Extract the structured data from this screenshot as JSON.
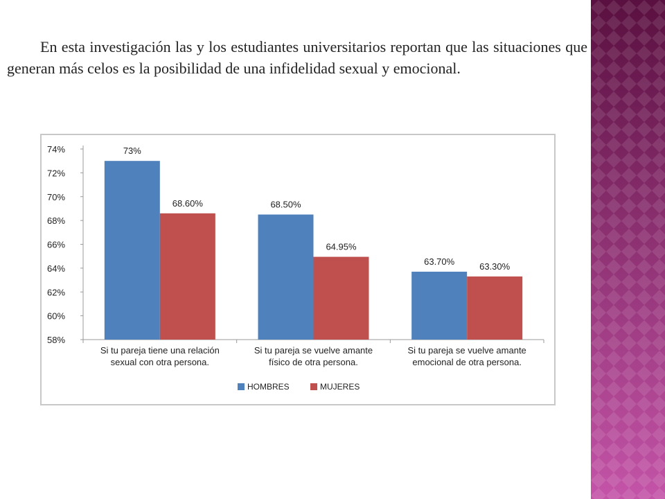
{
  "text": {
    "paragraph": "En esta investigación las y los estudiantes universitarios reportan que las situaciones que generan más celos es la posibilidad de una infidelidad sexual y emocional."
  },
  "colors": {
    "hombres": "#4f81bd",
    "mujeres": "#c0504d",
    "band_dark": "#5a1040",
    "band_light": "#c454a8"
  },
  "chart_data": {
    "type": "bar",
    "title": "",
    "xlabel": "",
    "ylabel": "",
    "ylim": [
      58,
      74
    ],
    "yticks": [
      58,
      60,
      62,
      64,
      66,
      68,
      70,
      72,
      74
    ],
    "ytick_labels": [
      "58%",
      "60%",
      "62%",
      "64%",
      "66%",
      "68%",
      "70%",
      "72%",
      "74%"
    ],
    "categories": [
      [
        "Si tu pareja tiene una relación",
        "sexual con otra persona."
      ],
      [
        "Si tu pareja se vuelve amante",
        "físico de otra persona."
      ],
      [
        "Si tu pareja se vuelve amante",
        "emocional de otra persona."
      ]
    ],
    "series": [
      {
        "name": "HOMBRES",
        "values": [
          73,
          68.5,
          63.7
        ],
        "labels": [
          "73%",
          "68.50%",
          "63.70%"
        ]
      },
      {
        "name": "MUJERES",
        "values": [
          68.6,
          64.95,
          63.3
        ],
        "labels": [
          "68.60%",
          "64.95%",
          "63.30%"
        ]
      }
    ],
    "legend": "bottom"
  }
}
